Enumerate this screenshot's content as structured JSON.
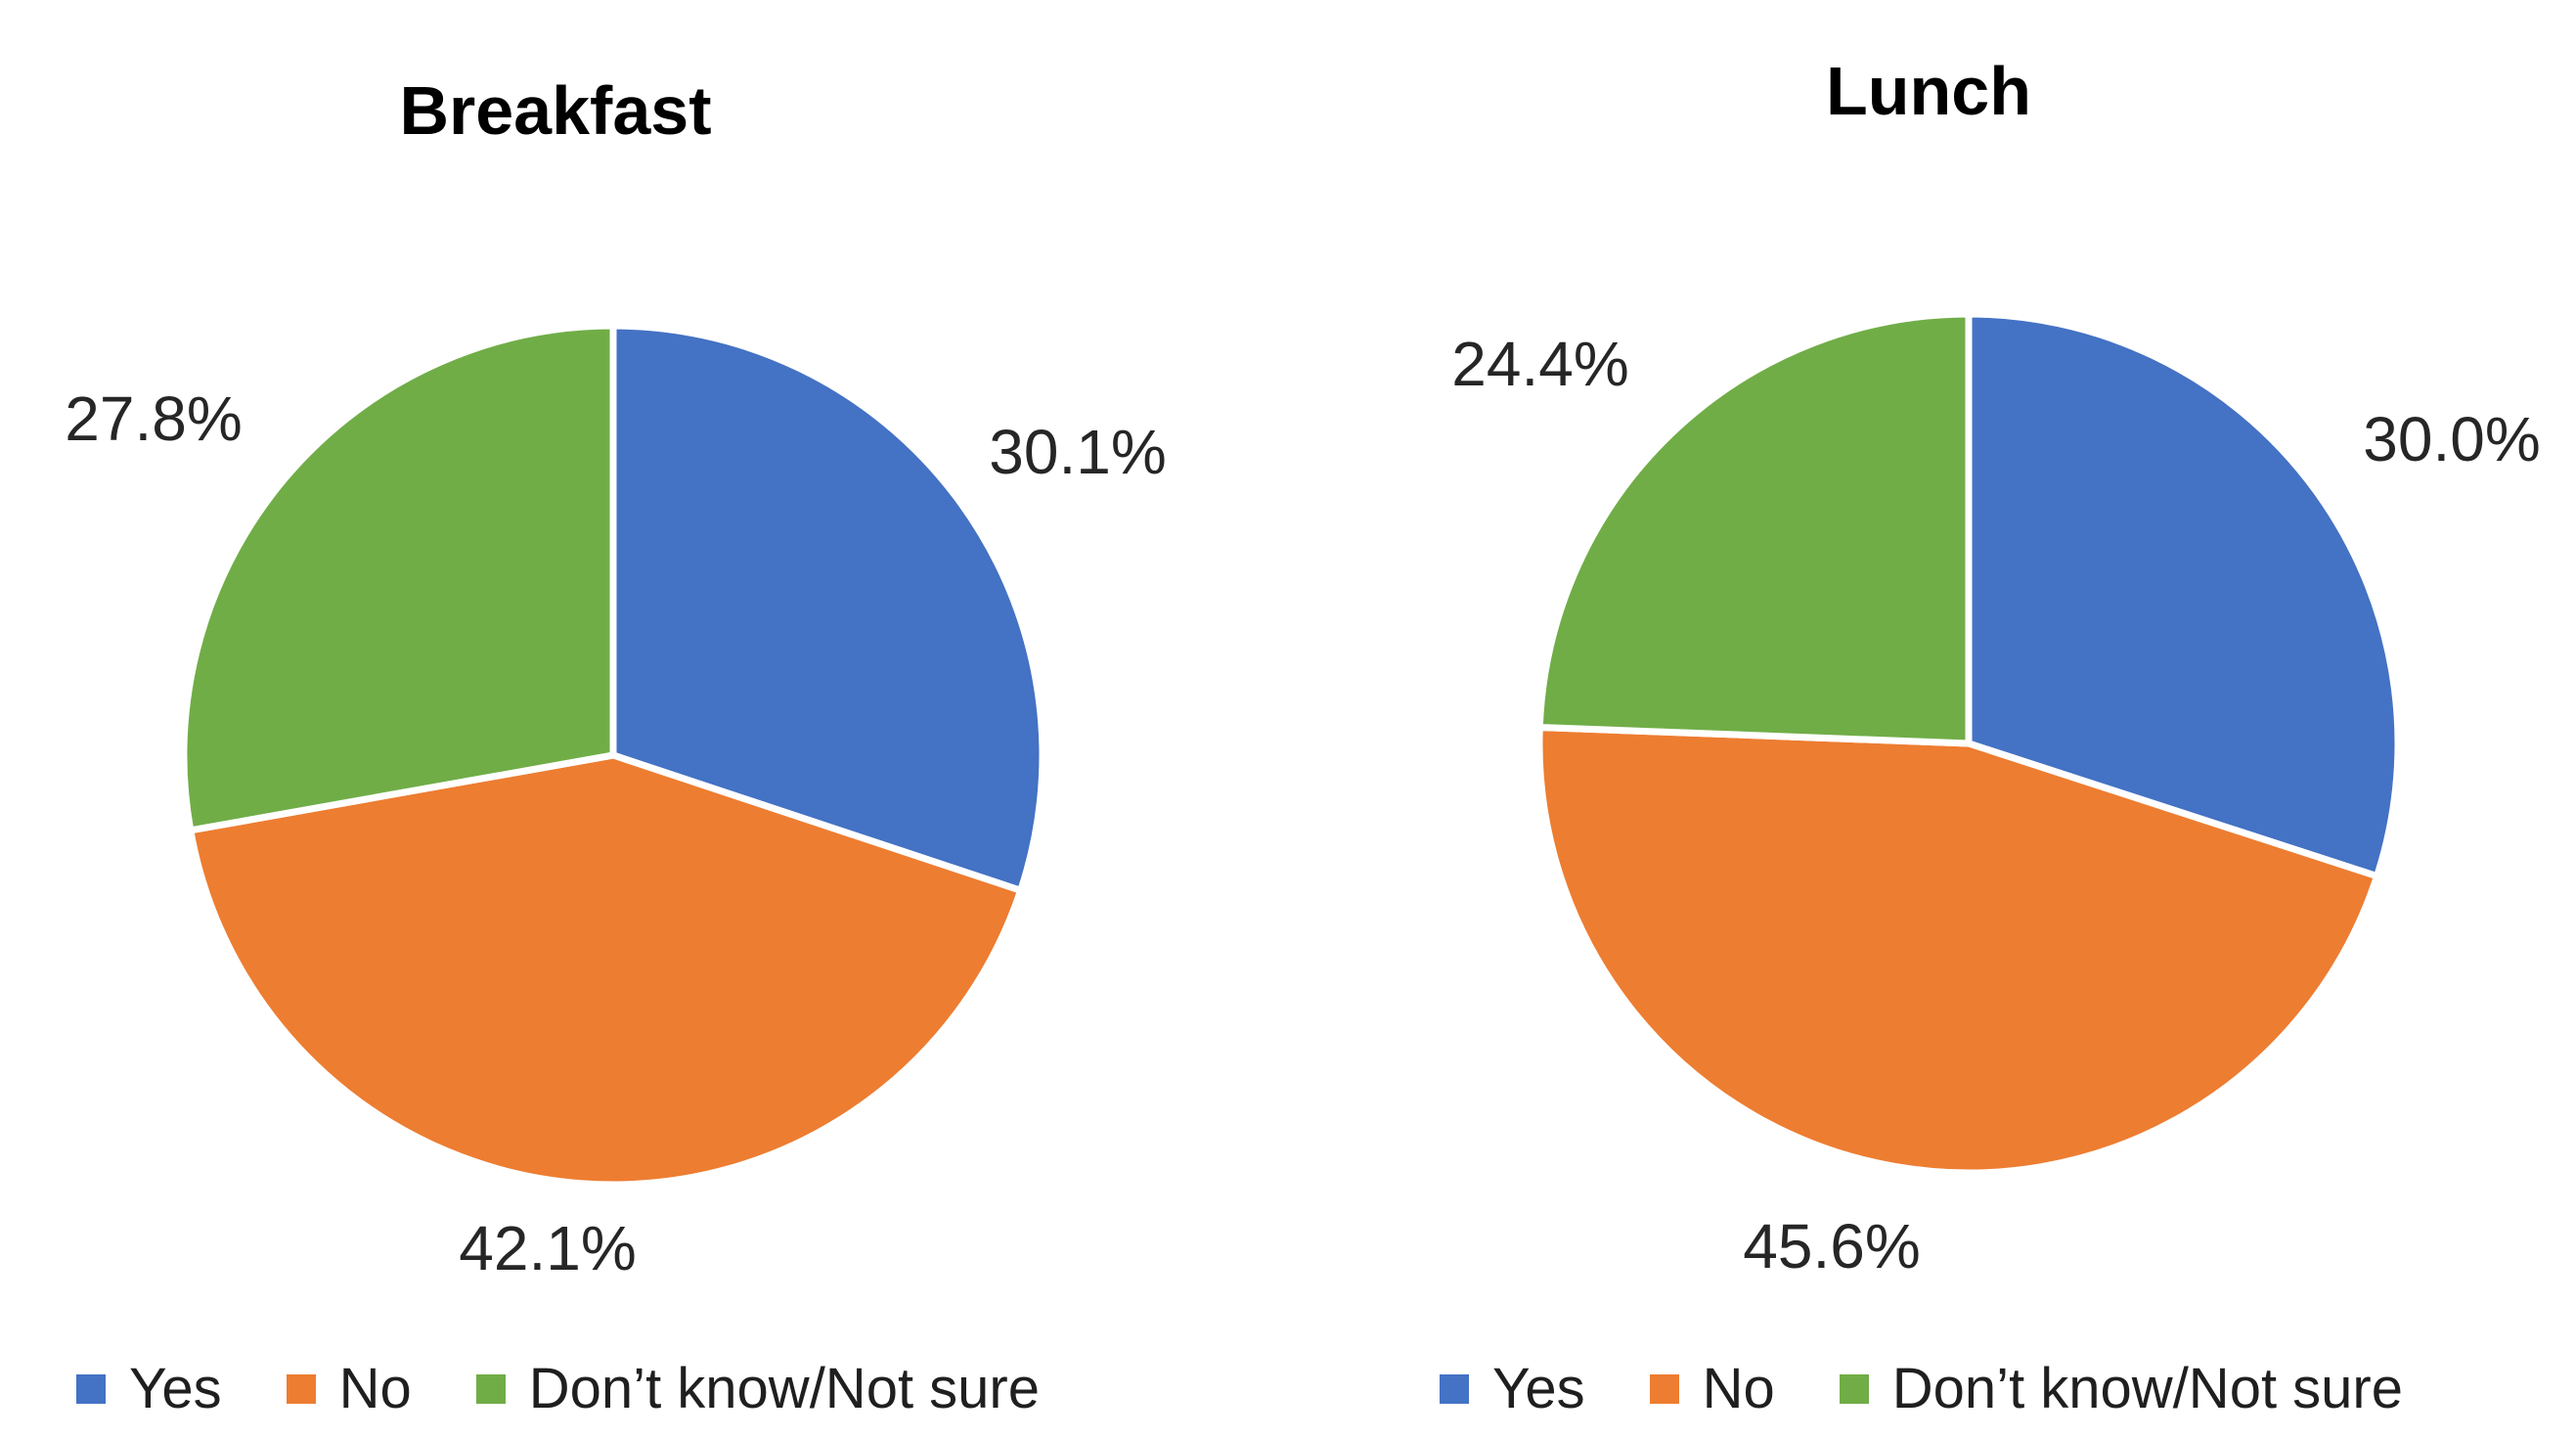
{
  "colors": {
    "yes": "#4472C4",
    "no": "#ED7D31",
    "dont_know": "#70AD47",
    "slice_border": "#FFFFFF",
    "label_text": "#262626",
    "title_text": "#000000"
  },
  "chart_data": [
    {
      "type": "pie",
      "title": "Breakfast",
      "categories": [
        "Yes",
        "No",
        "Don’t know/Not sure"
      ],
      "values": [
        30.1,
        42.1,
        27.8
      ],
      "unit": "percent",
      "data_labels": [
        "30.1%",
        "42.1%",
        "27.8%"
      ],
      "slice_colors": [
        "#4472C4",
        "#ED7D31",
        "#70AD47"
      ],
      "start_angle_deg": 0,
      "direction": "clockwise",
      "legend_position": "bottom"
    },
    {
      "type": "pie",
      "title": "Lunch",
      "categories": [
        "Yes",
        "No",
        "Don’t know/Not sure"
      ],
      "values": [
        30.0,
        45.6,
        24.4
      ],
      "unit": "percent",
      "data_labels": [
        "30.0%",
        "45.6%",
        "24.4%"
      ],
      "slice_colors": [
        "#4472C4",
        "#ED7D31",
        "#70AD47"
      ],
      "start_angle_deg": 0,
      "direction": "clockwise",
      "legend_position": "bottom"
    }
  ]
}
